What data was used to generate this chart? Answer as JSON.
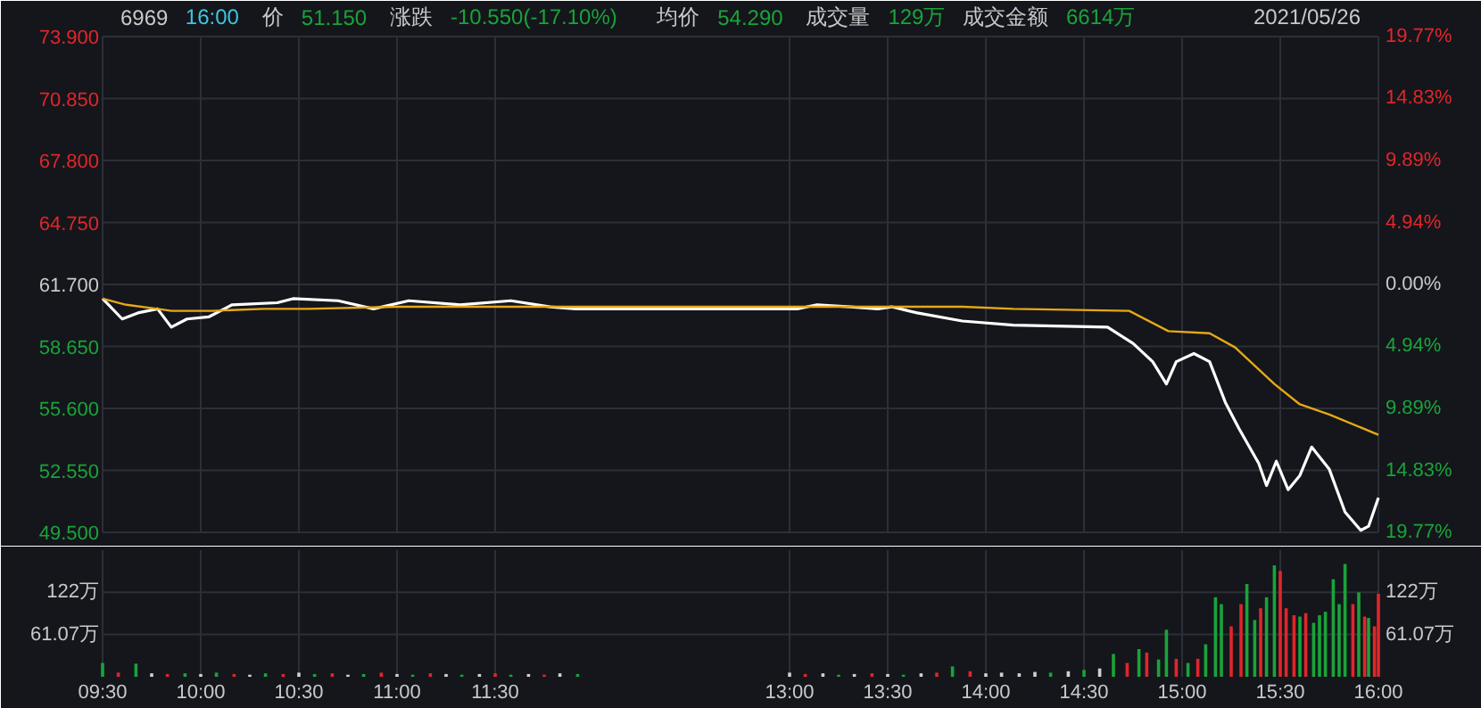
{
  "chart_data": [
    {
      "type": "line",
      "title": "6969",
      "subtitle": "16:00",
      "annotations": [
        "价",
        "51.150",
        "涨跌",
        "-10.550(-17.10%)",
        "均价",
        "54.290",
        "成交量",
        "129万",
        "成交金额",
        "6614万",
        "2021/05/26"
      ],
      "xlim": [
        9.5,
        16
      ],
      "xticks": [
        {
          "value": 9.5,
          "label": null
        },
        {
          "value": 10,
          "label": null
        },
        {
          "value": 10.5,
          "label": null
        },
        {
          "value": 11,
          "label": null
        },
        {
          "value": 11.5,
          "label": null
        },
        {
          "value": 13,
          "label": null
        },
        {
          "value": 13.5,
          "label": null
        },
        {
          "value": 14,
          "label": null
        },
        {
          "value": 14.5,
          "label": null
        },
        {
          "value": 15,
          "label": null
        },
        {
          "value": 15.5,
          "label": null
        },
        {
          "value": 16,
          "label": null
        }
      ],
      "tick_labels": "y",
      "ylim": [
        49.5,
        73.9
      ],
      "yticks": [
        {
          "value": 49.5,
          "label": "49.500"
        },
        {
          "value": 52.55,
          "label": "52.550"
        },
        {
          "value": 55.6,
          "label": "55.600"
        },
        {
          "value": 58.65,
          "label": "58.650"
        },
        {
          "value": 61.7,
          "label": "61.700"
        },
        {
          "value": 64.75,
          "label": "64.750"
        },
        {
          "value": 67.8,
          "label": "67.800"
        },
        {
          "value": 70.85,
          "label": "70.850"
        },
        {
          "value": 73.9,
          "label": "73.900"
        }
      ],
      "y2lim": [
        -19.77,
        19.77
      ],
      "y2ticks": [
        {
          "value": -19.77,
          "label": "19.77%"
        },
        {
          "value": -14.83,
          "label": "14.83%"
        },
        {
          "value": -9.89,
          "label": "9.89%"
        },
        {
          "value": -4.94,
          "label": "4.94%"
        },
        {
          "value": 0,
          "label": "0.00%"
        },
        {
          "value": 4.94,
          "label": "4.94%"
        },
        {
          "value": 9.89,
          "label": "9.89%"
        },
        {
          "value": 14.83,
          "label": "14.83%"
        },
        {
          "value": 19.77,
          "label": "19.77%"
        }
      ],
      "grid": true,
      "line_style": "solid",
      "marker": "none",
      "series": [
        {
          "color": "#ffffff",
          "x": [
            9.5,
            9.6,
            9.68,
            9.78,
            9.85,
            9.93,
            10.04,
            10.12,
            10.16,
            10.39,
            10.47,
            10.7,
            10.88,
            11.06,
            11.32,
            11.58,
            11.78,
            11.91,
            13.04,
            13.14,
            13.31,
            13.45,
            13.52,
            13.65,
            13.88,
            14.14,
            14.62,
            14.75,
            14.85,
            14.92,
            14.97,
            15.06,
            15.14,
            15.22,
            15.29,
            15.39,
            15.43,
            15.48,
            15.54,
            15.6,
            15.66,
            15.75,
            15.83,
            15.91,
            15.95,
            16.0
          ],
          "values": [
            61.0,
            60.0,
            60.3,
            60.5,
            59.6,
            60.0,
            60.1,
            60.5,
            60.7,
            60.8,
            61.0,
            60.9,
            60.5,
            60.9,
            60.7,
            60.9,
            60.6,
            60.5,
            60.5,
            60.7,
            60.6,
            60.5,
            60.6,
            60.3,
            59.9,
            59.7,
            59.6,
            58.8,
            57.9,
            56.8,
            57.9,
            58.3,
            57.9,
            55.9,
            54.6,
            52.9,
            51.8,
            53.0,
            51.6,
            52.3,
            53.7,
            52.6,
            50.5,
            49.6,
            49.8,
            51.2
          ]
        },
        {
          "color": "#e6a817",
          "x": [
            9.5,
            9.62,
            9.78,
            9.85,
            10.06,
            10.32,
            10.55,
            11.0,
            13.45,
            13.5,
            13.88,
            14.14,
            14.73,
            14.93,
            15.14,
            15.27,
            15.47,
            15.6,
            15.75,
            16.0
          ],
          "values": [
            61.0,
            60.7,
            60.5,
            60.4,
            60.4,
            60.5,
            60.5,
            60.6,
            60.6,
            60.6,
            60.6,
            60.5,
            60.4,
            59.4,
            59.3,
            58.6,
            56.8,
            55.8,
            55.3,
            54.3
          ]
        }
      ]
    },
    {
      "type": "bar",
      "xlim": [
        9.5,
        16
      ],
      "xticks": [
        {
          "value": 9.5,
          "label": "09:30"
        },
        {
          "value": 10,
          "label": "10:00"
        },
        {
          "value": 10.5,
          "label": "10:30"
        },
        {
          "value": 11,
          "label": "11:00"
        },
        {
          "value": 11.5,
          "label": "11:30"
        },
        {
          "value": 13,
          "label": "13:00"
        },
        {
          "value": 13.5,
          "label": "13:30"
        },
        {
          "value": 14,
          "label": "14:00"
        },
        {
          "value": 14.5,
          "label": "14:30"
        },
        {
          "value": 15,
          "label": "15:00"
        },
        {
          "value": 15.5,
          "label": "15:30"
        },
        {
          "value": 16,
          "label": "16:00"
        }
      ],
      "ylim": [
        0,
        183
      ],
      "yticks": [
        {
          "value": 61.07,
          "label": "61.07万"
        },
        {
          "value": 122.14,
          "label": "122万"
        }
      ],
      "grid": true,
      "x": [
        9.5,
        9.58,
        9.67,
        9.75,
        9.83,
        9.92,
        10.0,
        10.08,
        10.17,
        10.25,
        10.33,
        10.42,
        10.5,
        10.58,
        10.67,
        10.75,
        10.83,
        10.92,
        11.0,
        11.08,
        11.17,
        11.25,
        11.33,
        11.42,
        11.5,
        11.58,
        11.67,
        11.75,
        11.83,
        11.92,
        13.0,
        13.08,
        13.17,
        13.25,
        13.33,
        13.42,
        13.5,
        13.58,
        13.67,
        13.75,
        13.83,
        13.92,
        14.0,
        14.08,
        14.17,
        14.25,
        14.33,
        14.42,
        14.5,
        14.58,
        14.65,
        14.72,
        14.78,
        14.82,
        14.88,
        14.92,
        14.97,
        15.03,
        15.08,
        15.12,
        15.17,
        15.2,
        15.25,
        15.3,
        15.33,
        15.37,
        15.4,
        15.43,
        15.47,
        15.5,
        15.53,
        15.57,
        15.6,
        15.63,
        15.67,
        15.7,
        15.73,
        15.77,
        15.8,
        15.83,
        15.87,
        15.9,
        15.93,
        15.95,
        15.98,
        16.0
      ],
      "values": [
        20,
        6,
        19,
        5,
        4,
        5,
        4,
        6,
        4,
        3,
        5,
        4,
        6,
        4,
        5,
        3,
        4,
        6,
        4,
        3,
        5,
        4,
        3,
        4,
        5,
        3,
        4,
        3,
        5,
        4,
        6,
        4,
        5,
        3,
        4,
        5,
        4,
        3,
        5,
        6,
        15,
        8,
        5,
        6,
        5,
        7,
        6,
        8,
        10,
        12,
        33,
        20,
        40,
        35,
        25,
        68,
        26,
        20,
        26,
        47,
        115,
        105,
        73,
        105,
        134,
        82,
        99,
        115,
        161,
        153,
        99,
        89,
        87,
        92,
        78,
        89,
        94,
        141,
        105,
        163,
        105,
        122,
        87,
        85,
        73,
        120
      ],
      "colors": [
        "#1aa33a",
        "#e0262b",
        "#1aa33a",
        "#d0d0d0",
        "#e0262b",
        "#1aa33a",
        "#d0d0d0",
        "#1aa33a",
        "#e0262b",
        "#d0d0d0",
        "#1aa33a",
        "#e0262b",
        "#d0d0d0",
        "#1aa33a",
        "#e0262b",
        "#d0d0d0",
        "#1aa33a",
        "#e0262b",
        "#d0d0d0",
        "#1aa33a",
        "#e0262b",
        "#d0d0d0",
        "#1aa33a",
        "#d0d0d0",
        "#e0262b",
        "#1aa33a",
        "#d0d0d0",
        "#e0262b",
        "#d0d0d0",
        "#1aa33a",
        "#d0d0d0",
        "#e0262b",
        "#d0d0d0",
        "#1aa33a",
        "#d0d0d0",
        "#e0262b",
        "#d0d0d0",
        "#1aa33a",
        "#d0d0d0",
        "#e0262b",
        "#1aa33a",
        "#e0262b",
        "#d0d0d0",
        "#d0d0d0",
        "#d0d0d0",
        "#d0d0d0",
        "#1aa33a",
        "#d0d0d0",
        "#1aa33a",
        "#d0d0d0",
        "#1aa33a",
        "#e0262b",
        "#1aa33a",
        "#e0262b",
        "#1aa33a",
        "#1aa33a",
        "#e0262b",
        "#1aa33a",
        "#e0262b",
        "#1aa33a",
        "#1aa33a",
        "#1aa33a",
        "#e0262b",
        "#e0262b",
        "#1aa33a",
        "#1aa33a",
        "#e0262b",
        "#1aa33a",
        "#1aa33a",
        "#e0262b",
        "#e0262b",
        "#e0262b",
        "#1aa33a",
        "#e0262b",
        "#1aa33a",
        "#1aa33a",
        "#1aa33a",
        "#1aa33a",
        "#1aa33a",
        "#1aa33a",
        "#e0262b",
        "#1aa33a",
        "#e0262b",
        "#1aa33a",
        "#e0262b",
        "#e0262b"
      ]
    }
  ]
}
